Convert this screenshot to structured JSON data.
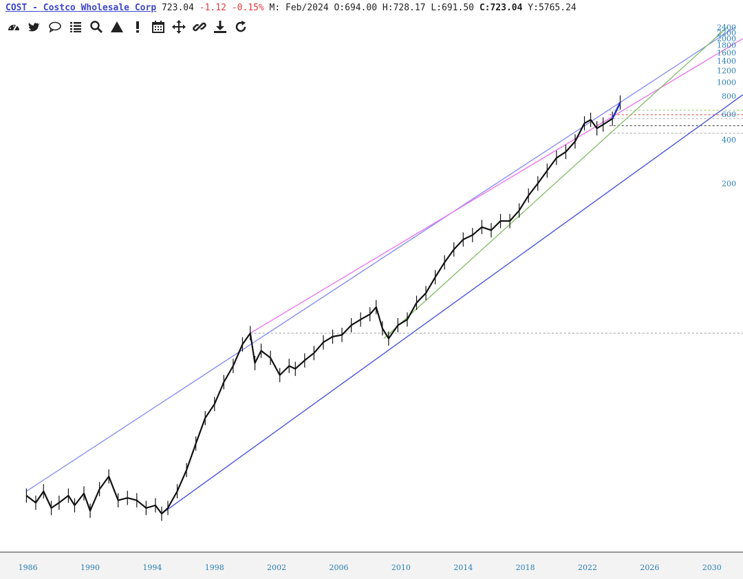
{
  "header": {
    "symbol": "COST - Costco Wholesale Corp",
    "last": "723.04",
    "change": "-1.12",
    "change_pct": "-0.15%",
    "period": "M: Feb/2024",
    "open_label": "O:",
    "open": "694.00",
    "high_label": "H:",
    "high": "728.17",
    "low_label": "L:",
    "low": "691.50",
    "close_label": "C:",
    "close": "723.04",
    "yield_label": "Y:",
    "yield": "5765.24"
  },
  "toolbar": [
    "dashboard-icon",
    "twitter-icon",
    "comment-icon",
    "list-icon",
    "search-icon",
    "triangle-icon",
    "alert-icon",
    "calendar-icon",
    "move-icon",
    "link-icon",
    "download-icon",
    "refresh-icon"
  ],
  "chart_data": {
    "type": "line",
    "scale": "log",
    "x_ticks": [
      1986,
      1990,
      1994,
      1998,
      2002,
      2006,
      2010,
      2014,
      2018,
      2022,
      2026,
      2030
    ],
    "y_ticks": [
      200,
      400,
      600,
      800,
      1000,
      1200,
      1400,
      1600,
      1800,
      2000,
      2200,
      2400
    ],
    "xlim": [
      1984.2,
      2032.0
    ],
    "ylim": [
      0.57,
      2600
    ],
    "series": [
      {
        "x": [
          1985.9,
          1986.5,
          1987.0,
          1987.5,
          1988.0,
          1988.6,
          1989.0,
          1989.6,
          1990.0,
          1990.6,
          1991.2,
          1991.8,
          1992.4,
          1993.0,
          1993.6,
          1994.2,
          1994.6,
          1995.0,
          1995.6,
          1996.2,
          1996.8,
          1997.4,
          1998.0,
          1998.6,
          1999.2,
          1999.8,
          2000.3,
          2000.6,
          2001.0,
          2001.6,
          2002.2,
          2002.8,
          2003.2,
          2003.8,
          2004.4,
          2005.0,
          2005.6,
          2006.2,
          2006.8,
          2007.4,
          2008.0,
          2008.4,
          2008.8,
          2009.2,
          2009.8,
          2010.4,
          2011.0,
          2011.6,
          2012.2,
          2012.8,
          2013.4,
          2014.0,
          2014.6,
          2015.2,
          2015.8,
          2016.4,
          2017.0,
          2017.6,
          2018.2,
          2018.8,
          2019.4,
          2020.0,
          2020.6,
          2021.2,
          2021.8,
          2022.2,
          2022.6,
          2023.0,
          2023.6,
          2024.1
        ],
        "y": [
          1.4,
          1.25,
          1.5,
          1.15,
          1.25,
          1.4,
          1.2,
          1.45,
          1.1,
          1.55,
          1.9,
          1.3,
          1.35,
          1.3,
          1.15,
          1.2,
          1.05,
          1.15,
          1.5,
          2.1,
          3.2,
          4.8,
          6.0,
          8.5,
          11.0,
          15.5,
          18.5,
          11.5,
          14.0,
          12.5,
          9.5,
          11.0,
          10.5,
          12.0,
          13.5,
          16.0,
          17.5,
          18.0,
          21.0,
          23.0,
          25.0,
          28.0,
          20.0,
          17.0,
          21.0,
          23.0,
          30.0,
          35.0,
          45.0,
          57.0,
          70.0,
          82.0,
          88.0,
          100.0,
          95.0,
          110.0,
          110.0,
          130.0,
          165.0,
          200.0,
          245.0,
          300.0,
          330.0,
          390.0,
          520.0,
          550.0,
          480.0,
          510.0,
          560.0,
          723.0
        ]
      }
    ],
    "trend_lines": [
      {
        "name": "upper-channel",
        "color": "#8a8ff0",
        "x": [
          1985.9,
          2031.5
        ],
        "y": [
          1.5,
          2400
        ]
      },
      {
        "name": "magenta-resistance",
        "color": "#ee77ee",
        "x": [
          2000.3,
          2032.0
        ],
        "y": [
          18.5,
          2000
        ]
      },
      {
        "name": "green-support",
        "color": "#88c070",
        "x": [
          2008.9,
          2031.0
        ],
        "y": [
          17.0,
          2400
        ]
      },
      {
        "name": "lower-channel",
        "color": "#4a55e0",
        "x": [
          1994.6,
          2032.0
        ],
        "y": [
          1.05,
          820
        ]
      }
    ],
    "h_levels": [
      {
        "y": 18.5,
        "color": "#999999",
        "x0": 2000.3
      },
      {
        "y": 640,
        "color": "#88cc66",
        "x0": 2023.4
      },
      {
        "y": 595,
        "color": "#e04040",
        "x0": 2023.4
      },
      {
        "y": 560,
        "color": "#aaaaaa",
        "x0": 2023.4
      },
      {
        "y": 500,
        "color": "#333333",
        "x0": 2023.4
      },
      {
        "y": 445,
        "color": "#aaaaaa",
        "x0": 2023.4
      }
    ]
  }
}
